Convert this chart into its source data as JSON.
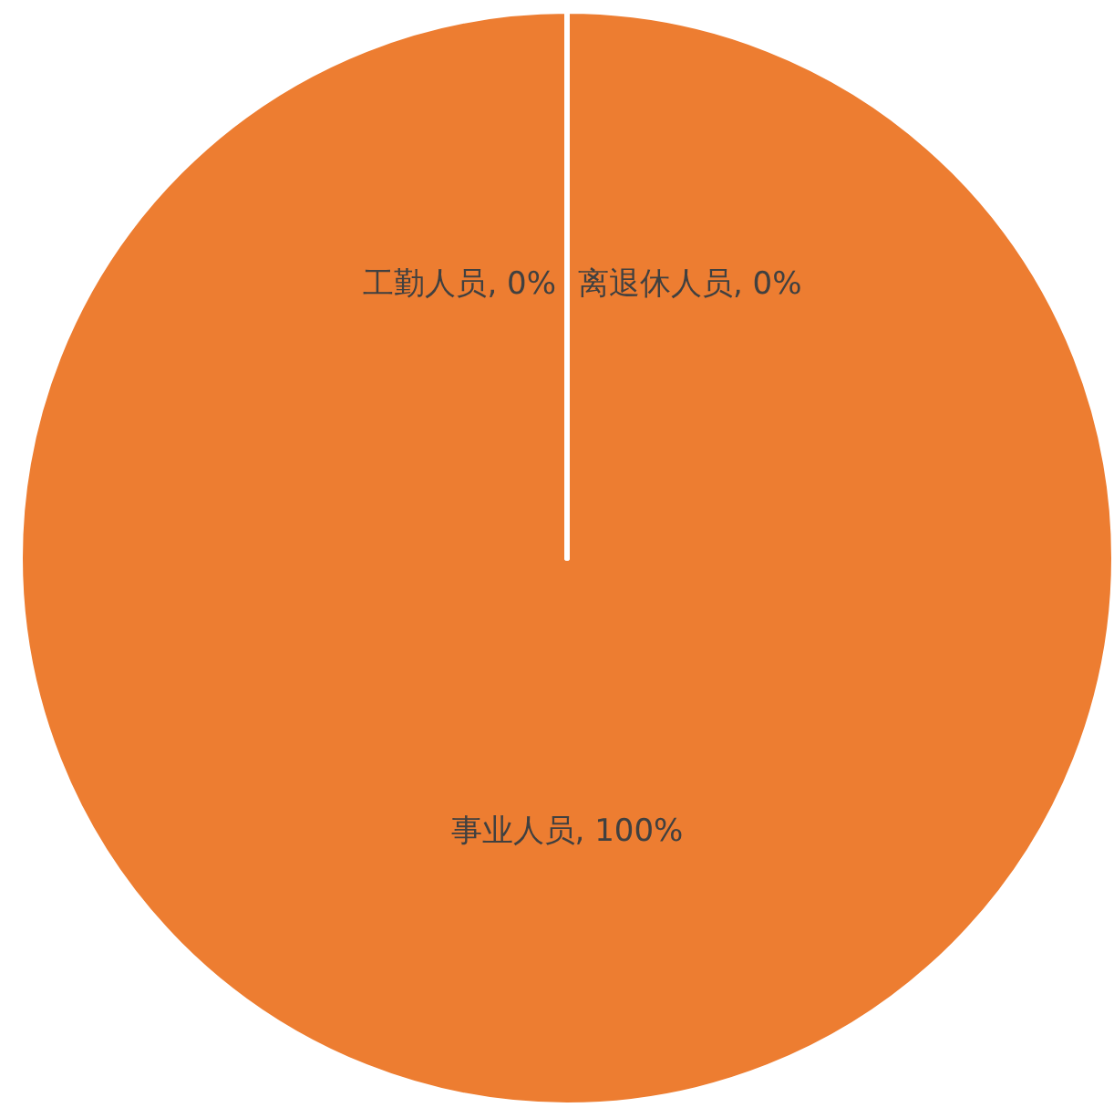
{
  "chart_data": {
    "type": "pie",
    "categories": [
      "离退休人员",
      "事业人员",
      "工勤人员"
    ],
    "values": [
      0,
      100,
      0
    ],
    "colors": [
      "#4472c4",
      "#ed7d31",
      "#a5a5a5"
    ],
    "value_labels": [
      ", 0%",
      ", 100%",
      ", 0%"
    ]
  }
}
